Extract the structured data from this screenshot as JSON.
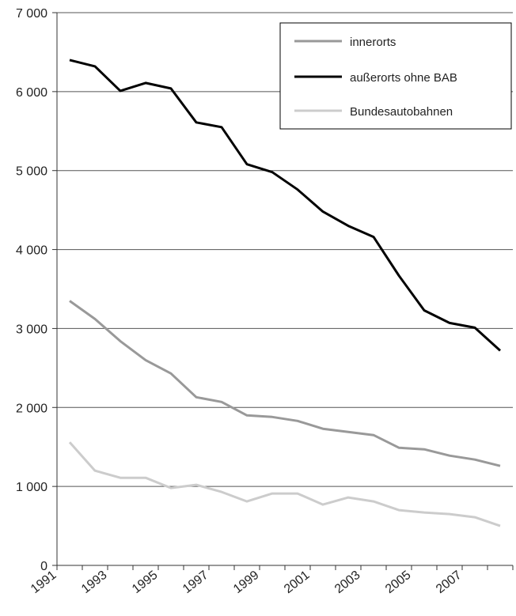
{
  "chart_data": {
    "type": "line",
    "title": "",
    "xlabel": "",
    "ylabel": "",
    "x": [
      1991,
      1992,
      1993,
      1994,
      1995,
      1996,
      1997,
      1998,
      1999,
      2000,
      2001,
      2002,
      2003,
      2004,
      2005,
      2006,
      2007,
      2008
    ],
    "x_tick_labels": [
      "1991",
      "1993",
      "1995",
      "1997",
      "1999",
      "2001",
      "2003",
      "2005",
      "2007"
    ],
    "x_tick_values": [
      1991,
      1993,
      1995,
      1997,
      1999,
      2001,
      2003,
      2005,
      2007
    ],
    "ylim": [
      0,
      7000
    ],
    "y_ticks": [
      0,
      1000,
      2000,
      3000,
      4000,
      5000,
      6000,
      7000
    ],
    "y_tick_labels": [
      "0",
      "1 000",
      "2 000",
      "3 000",
      "4 000",
      "5 000",
      "6 000",
      "7 000"
    ],
    "grid": "horizontal",
    "legend_position": "top-right",
    "series": [
      {
        "name": "innerorts",
        "color": "#999999",
        "values": [
          3350,
          3120,
          2840,
          2600,
          2430,
          2130,
          2070,
          1900,
          1880,
          1830,
          1730,
          1690,
          1650,
          1490,
          1470,
          1390,
          1340,
          1260
        ]
      },
      {
        "name": "außerorts ohne BAB",
        "color": "#000000",
        "values": [
          6400,
          6320,
          6010,
          6110,
          6040,
          5610,
          5550,
          5080,
          4980,
          4760,
          4480,
          4300,
          4160,
          3670,
          3230,
          3070,
          3010,
          2720
        ]
      },
      {
        "name": "Bundesautobahnen",
        "color": "#cccccc",
        "values": [
          1560,
          1200,
          1110,
          1110,
          980,
          1020,
          930,
          810,
          910,
          910,
          770,
          860,
          810,
          700,
          670,
          650,
          610,
          500
        ]
      }
    ]
  }
}
